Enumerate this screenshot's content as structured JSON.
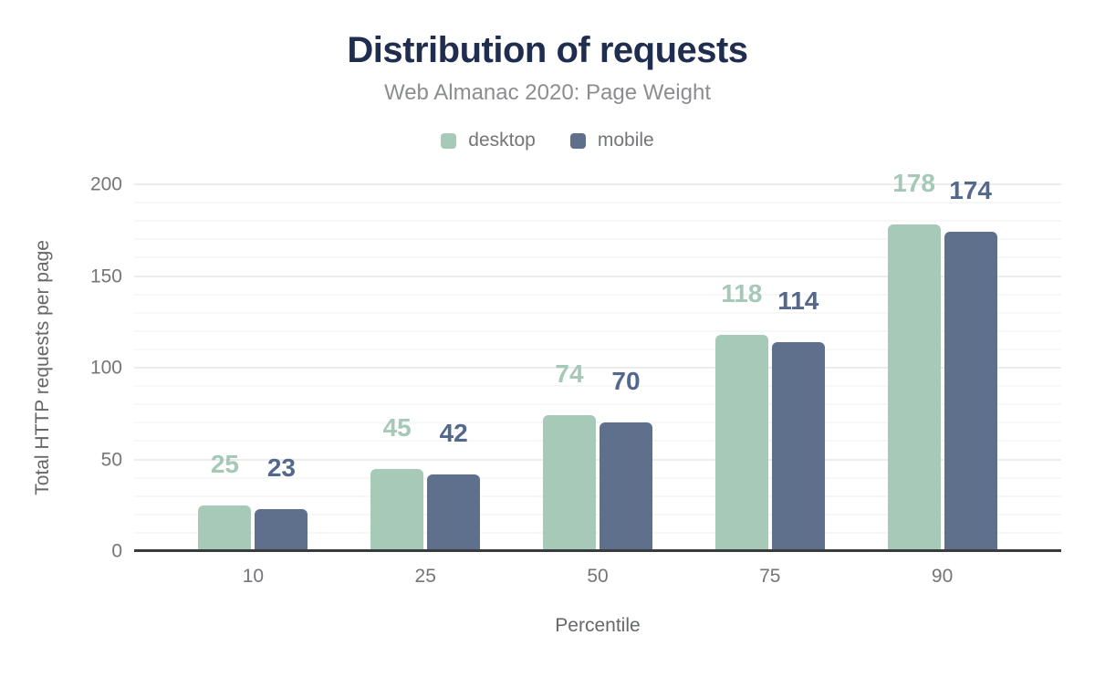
{
  "header": {
    "title": "Distribution of requests",
    "subtitle": "Web Almanac 2020: Page Weight"
  },
  "chart_data": {
    "type": "bar",
    "title": "Distribution of requests",
    "subtitle": "Web Almanac 2020: Page Weight",
    "categories": [
      "10",
      "25",
      "50",
      "75",
      "90"
    ],
    "series": [
      {
        "name": "desktop",
        "color": "#a6c9b8",
        "label_color": "#a5c8b7",
        "values": [
          25,
          45,
          74,
          118,
          178
        ]
      },
      {
        "name": "mobile",
        "color": "#5f708c",
        "label_color": "#54688e",
        "values": [
          23,
          42,
          70,
          114,
          174
        ]
      }
    ],
    "xlabel": "Percentile",
    "ylabel": "Total HTTP requests per page",
    "ylim": [
      0,
      200
    ],
    "yticks": [
      0,
      50,
      100,
      150,
      200
    ],
    "minor_grid_step": 10,
    "major_grid_step": 50,
    "grid": "on",
    "legend_position": "top",
    "data_labels": "above-bars"
  }
}
